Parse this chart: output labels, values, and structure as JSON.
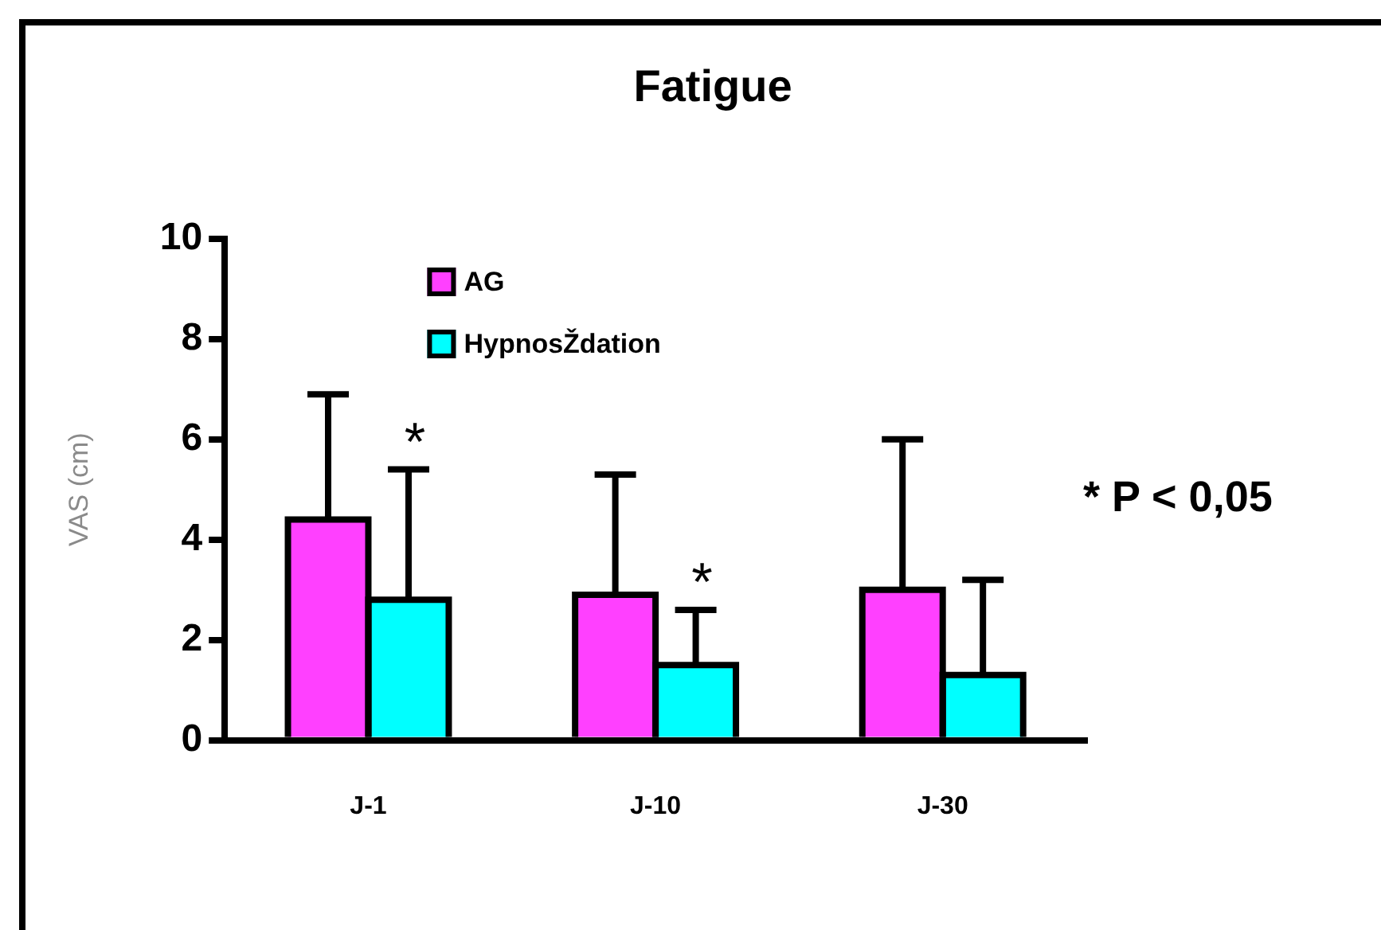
{
  "chart_data": {
    "type": "bar",
    "title": "Fatigue",
    "ylabel": "VAS (cm)",
    "categories": [
      "J-1",
      "J-10",
      "J-30"
    ],
    "series": [
      {
        "name": "AG",
        "color": "#ff40ff",
        "values": [
          4.4,
          2.9,
          3.0
        ],
        "errors": [
          [
            4.4,
            6.9
          ],
          [
            2.9,
            5.3
          ],
          [
            3.0,
            6.0
          ]
        ]
      },
      {
        "name": "HypnosŽdation",
        "color": "#00ffff",
        "values": [
          2.8,
          1.5,
          1.3
        ],
        "errors": [
          [
            2.8,
            5.4
          ],
          [
            1.5,
            2.6
          ],
          [
            1.3,
            3.2
          ]
        ]
      }
    ],
    "ylim": [
      0,
      10
    ],
    "yticks": [
      0,
      2,
      4,
      6,
      8,
      10
    ],
    "grid": false,
    "legend": "top left",
    "annotations": [
      {
        "text": "*",
        "x": "J-1",
        "y": 2.8
      },
      {
        "text": "*",
        "x": "J-10",
        "y": 1.5
      },
      "* P < 0,05"
    ]
  }
}
